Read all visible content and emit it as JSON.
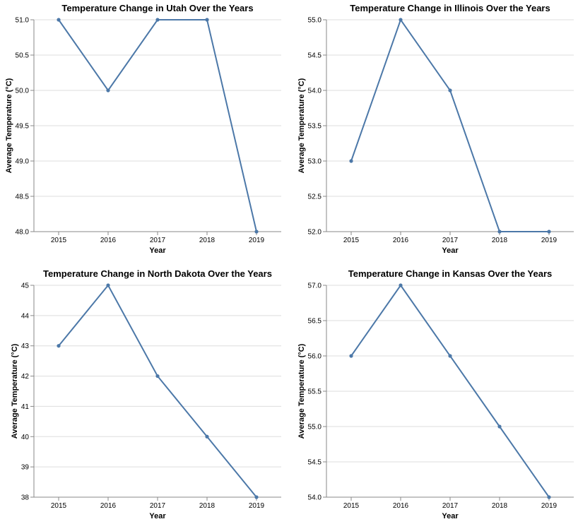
{
  "chart_data": [
    {
      "type": "line",
      "title": "Temperature Change in Utah Over the Years",
      "xlabel": "Year",
      "ylabel": "Average Temperature (°C)",
      "x": [
        "2015",
        "2016",
        "2017",
        "2018",
        "2019"
      ],
      "values": [
        51.0,
        50.0,
        51.0,
        51.0,
        48.0
      ],
      "ylim": [
        48.0,
        51.0
      ],
      "yticks": [
        "48.0",
        "48.5",
        "49.0",
        "49.5",
        "50.0",
        "50.5",
        "51.0"
      ],
      "grid": true,
      "color": "#4c78a8"
    },
    {
      "type": "line",
      "title": "Temperature Change in Illinois Over the Years",
      "xlabel": "Year",
      "ylabel": "Average Temperature (°C)",
      "x": [
        "2015",
        "2016",
        "2017",
        "2018",
        "2019"
      ],
      "values": [
        53.0,
        55.0,
        54.0,
        52.0,
        52.0
      ],
      "ylim": [
        52.0,
        55.0
      ],
      "yticks": [
        "52.0",
        "52.5",
        "53.0",
        "53.5",
        "54.0",
        "54.5",
        "55.0"
      ],
      "grid": true,
      "color": "#4c78a8"
    },
    {
      "type": "line",
      "title": "Temperature Change in North Dakota Over the Years",
      "xlabel": "Year",
      "ylabel": "Average Temperature (°C)",
      "x": [
        "2015",
        "2016",
        "2017",
        "2018",
        "2019"
      ],
      "values": [
        43,
        45,
        42,
        40,
        38
      ],
      "ylim": [
        38,
        45
      ],
      "yticks": [
        "38",
        "39",
        "40",
        "41",
        "42",
        "43",
        "44",
        "45"
      ],
      "grid": true,
      "color": "#4c78a8"
    },
    {
      "type": "line",
      "title": "Temperature Change in Kansas Over the Years",
      "xlabel": "Year",
      "ylabel": "Average Temperature (°C)",
      "x": [
        "2015",
        "2016",
        "2017",
        "2018",
        "2019"
      ],
      "values": [
        56.0,
        57.0,
        56.0,
        55.0,
        54.0
      ],
      "ylim": [
        54.0,
        57.0
      ],
      "yticks": [
        "54.0",
        "54.5",
        "55.0",
        "55.5",
        "56.0",
        "56.5",
        "57.0"
      ],
      "grid": true,
      "color": "#4c78a8"
    }
  ]
}
